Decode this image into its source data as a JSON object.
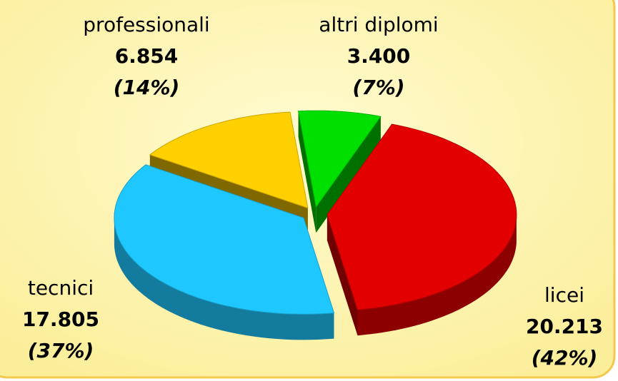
{
  "chart_data": {
    "type": "pie3d",
    "categories": [
      "licei",
      "tecnici",
      "professionali",
      "altri diplomi"
    ],
    "values": [
      20213,
      17805,
      6854,
      3400
    ],
    "value_labels": [
      "20.213",
      "17.805",
      "6.854",
      "3.400"
    ],
    "percentage_labels": [
      "(42%)",
      "(37%)",
      "(14%)",
      "(7%)"
    ],
    "colors": [
      "#e20000",
      "#1ec8ff",
      "#ffd000",
      "#00e000"
    ]
  }
}
